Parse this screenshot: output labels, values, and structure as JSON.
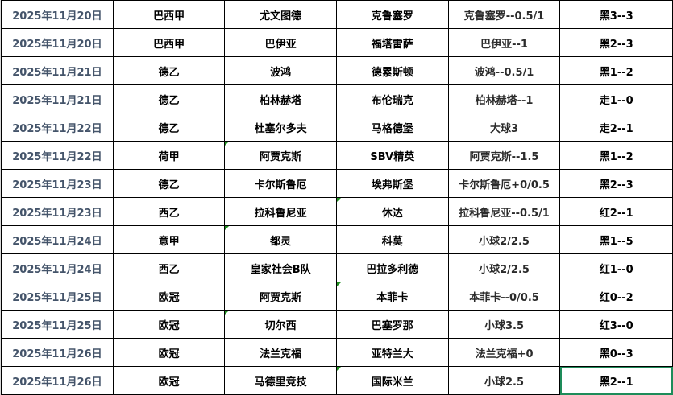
{
  "colors": {
    "date_text": "#44546a",
    "selection_border": "#1e8c5a",
    "comment_marker": "#1f8f1f"
  },
  "rows": [
    {
      "date": "2025年11月20日",
      "league": "巴西甲",
      "home": "尤文图德",
      "away": "克鲁塞罗",
      "tip": "克鲁塞罗--0.5/1",
      "result": "黑3--3"
    },
    {
      "date": "2025年11月20日",
      "league": "巴西甲",
      "home": "巴伊亚",
      "away": "福塔雷萨",
      "tip": "巴伊亚--1",
      "result": "黑2--3"
    },
    {
      "date": "2025年11月21日",
      "league": "德乙",
      "home": "波鸿",
      "away": "德累斯顿",
      "tip": "波鸿--0.5/1",
      "result": "黑1--2"
    },
    {
      "date": "2025年11月21日",
      "league": "德乙",
      "home": "柏林赫塔",
      "away": "布伦瑞克",
      "tip": "柏林赫塔--1",
      "result": "走1--0"
    },
    {
      "date": "2025年11月22日",
      "league": "德乙",
      "home": "杜塞尔多夫",
      "away": "马格德堡",
      "tip": "大球3",
      "result": "走2--1"
    },
    {
      "date": "2025年11月22日",
      "league": "荷甲",
      "home": "阿贾克斯",
      "away": "SBV精英",
      "tip": "阿贾克斯--1.5",
      "result": "黑1--2"
    },
    {
      "date": "2025年11月23日",
      "league": "德乙",
      "home": "卡尔斯鲁厄",
      "away": "埃弗斯堡",
      "tip": "卡尔斯鲁厄+0/0.5",
      "result": "黑2--3"
    },
    {
      "date": "2025年11月23日",
      "league": "西乙",
      "home": "拉科鲁尼亚",
      "away": "休达",
      "tip": "拉科鲁尼亚--0.5/1",
      "result": "红2--1"
    },
    {
      "date": "2025年11月24日",
      "league": "意甲",
      "home": "都灵",
      "away": "科莫",
      "tip": "小球2/2.5",
      "result": "黑1--5"
    },
    {
      "date": "2025年11月24日",
      "league": "西乙",
      "home": "皇家社会B队",
      "away": "巴拉多利德",
      "tip": "小球2/2.5",
      "result": "红1--0"
    },
    {
      "date": "2025年11月25日",
      "league": "欧冠",
      "home": "阿贾克斯",
      "away": "本菲卡",
      "tip": "本菲卡--0/0.5",
      "result": "红0--2"
    },
    {
      "date": "2025年11月25日",
      "league": "欧冠",
      "home": "切尔西",
      "away": "巴塞罗那",
      "tip": "小球3.5",
      "result": "红3--0"
    },
    {
      "date": "2025年11月26日",
      "league": "欧冠",
      "home": "法兰克福",
      "away": "亚特兰大",
      "tip": "法兰克福+0",
      "result": "黑0--3"
    },
    {
      "date": "2025年11月26日",
      "league": "欧冠",
      "home": "马德里竞技",
      "away": "国际米兰",
      "tip": "小球2.5",
      "result": "黑2--1"
    }
  ]
}
